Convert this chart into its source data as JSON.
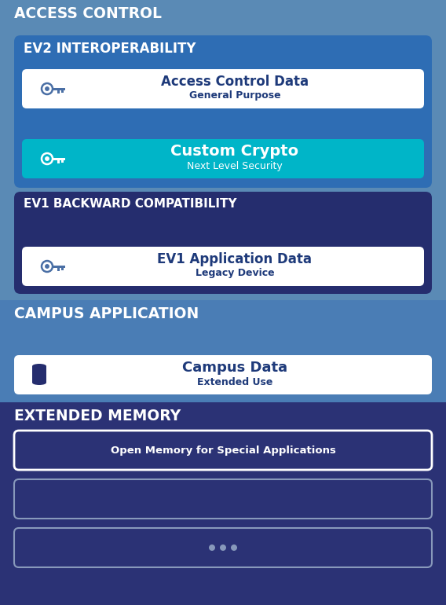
{
  "bg_color": "#5a8ab5",
  "ev2_bg": "#2e6db4",
  "ev1_bg": "#252d6e",
  "campus_bg": "#4a7db5",
  "extended_bg": "#2b3275",
  "teal": "#00b5c8",
  "white": "#ffffff",
  "card_white_bg": "#ffffff",
  "key_color_dark": "#4a6fa5",
  "key_color_white": "#ffffff",
  "dots_color": "#8899bb",
  "outline_white": "#ffffff",
  "outline_gray": "#8899bb",
  "ac_title": "ACCESS CONTROL",
  "ev2_label": "EV2 INTEROPERABILITY",
  "ev1_label": "EV1 BACKWARD COMPATIBILITY",
  "campus_title": "CAMPUS APPLICATION",
  "extended_title": "EXTENDED MEMORY",
  "row1_title": "Access Control Data",
  "row1_sub": "General Purpose",
  "row1_title_color": "#1e3a7a",
  "row1_sub_color": "#1e3a7a",
  "row2_title": "Custom Crypto",
  "row2_sub": "Next Level Security",
  "row2_title_color": "#ffffff",
  "row2_sub_color": "#ffffff",
  "ev1_row_title": "EV1 Application Data",
  "ev1_row_sub": "Legacy Device",
  "ev1_row_title_color": "#1e3a7a",
  "ev1_row_sub_color": "#1e3a7a",
  "campus_row_title": "Campus Data",
  "campus_row_sub": "Extended Use",
  "campus_row_title_color": "#1e3a7a",
  "campus_row_sub_color": "#1e3a7a",
  "em_row1_text": "Open Memory for Special Applications",
  "em_row1_color": "#ffffff",
  "figw": 5.68,
  "figh": 7.7,
  "dpi": 100
}
